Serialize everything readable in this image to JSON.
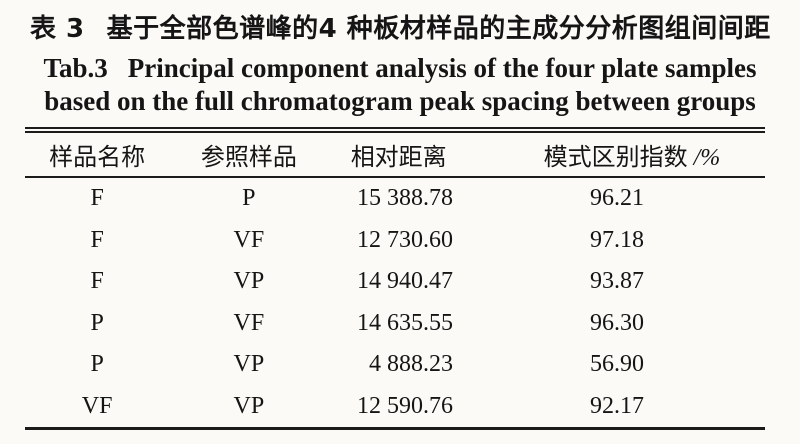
{
  "caption": {
    "label_cn": "表 3",
    "title_cn": "基于全部色谱峰的4 种板材样品的主成分分析图组间间距",
    "label_en": "Tab.3",
    "title_en_line1": "Principal component analysis of the four plate samples",
    "title_en_line2": "based on the full chromatogram peak spacing between groups"
  },
  "table": {
    "columns": [
      {
        "label": "样品名称"
      },
      {
        "label": "参照样品"
      },
      {
        "label": "相对距离"
      },
      {
        "label": "模式区别指数",
        "unit": "/%"
      }
    ],
    "rows": [
      [
        "F",
        "P",
        "15 388.78",
        "96.21"
      ],
      [
        "F",
        "VF",
        "12 730.60",
        "97.18"
      ],
      [
        "F",
        "VP",
        "14 940.47",
        "93.87"
      ],
      [
        "P",
        "VF",
        "14 635.55",
        "96.30"
      ],
      [
        "P",
        "VP",
        "4 888.23",
        "56.90"
      ],
      [
        "VF",
        "VP",
        "12 590.76",
        "92.17"
      ]
    ]
  },
  "colors": {
    "background": "#fbfaf7",
    "text": "#151515",
    "rule": "#1b1b1b"
  }
}
